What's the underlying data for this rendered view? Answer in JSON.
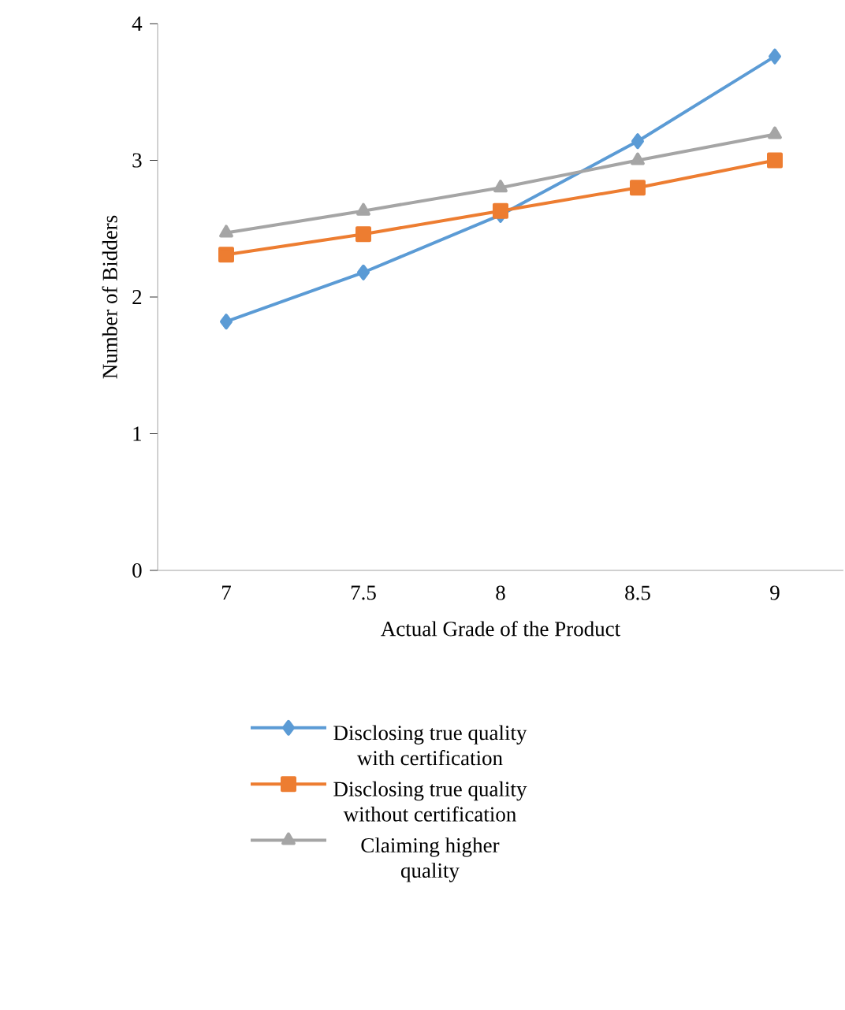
{
  "chart_data": {
    "type": "line",
    "xlabel": "Actual Grade of the Product",
    "ylabel": "Number of Bidders",
    "categories": [
      "7",
      "7.5",
      "8",
      "8.5",
      "9"
    ],
    "series": [
      {
        "name": "Disclosing true quality with certification",
        "color": "#5b9bd5",
        "marker": "diamond",
        "values": [
          1.82,
          2.18,
          2.6,
          3.14,
          3.76
        ]
      },
      {
        "name": "Disclosing true quality without certification",
        "color": "#ed7d31",
        "marker": "square",
        "values": [
          2.31,
          2.46,
          2.63,
          2.8,
          3.0
        ]
      },
      {
        "name": "Claiming higher quality",
        "color": "#a5a5a5",
        "marker": "triangle",
        "values": [
          2.47,
          2.63,
          2.8,
          3.0,
          3.19
        ]
      }
    ],
    "ylim": [
      0,
      4
    ],
    "yticks": [
      0,
      1,
      2,
      3,
      4
    ],
    "grid": false,
    "legend": "bottom",
    "line_style": "solid"
  }
}
